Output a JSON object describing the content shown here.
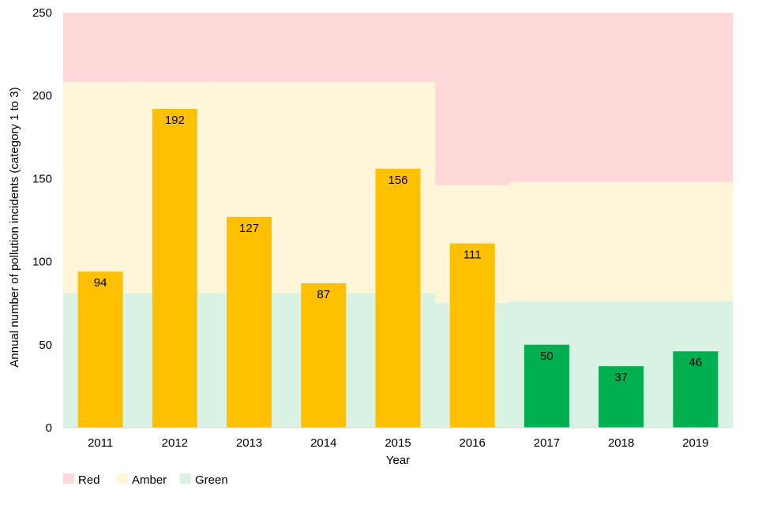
{
  "chart_data": {
    "type": "bar",
    "categories": [
      "2011",
      "2012",
      "2013",
      "2014",
      "2015",
      "2016",
      "2017",
      "2018",
      "2019"
    ],
    "values": [
      94,
      192,
      127,
      87,
      156,
      111,
      50,
      37,
      46
    ],
    "bar_colors": [
      "#FFC000",
      "#FFC000",
      "#FFC000",
      "#FFC000",
      "#FFC000",
      "#FFC000",
      "#00B050",
      "#00B050",
      "#00B050"
    ],
    "xlabel": "Year",
    "ylabel": "Annual number of pollution incidents (category 1 to 3)",
    "ylim": [
      0,
      250
    ],
    "yticks": [
      0,
      50,
      100,
      150,
      200,
      250
    ],
    "grid": false,
    "threshold_bands": {
      "amber_upper": [
        208,
        208,
        208,
        208,
        208,
        146,
        148,
        148,
        148
      ],
      "green_upper": [
        81,
        81,
        81,
        81,
        81,
        75,
        76,
        76,
        76
      ]
    },
    "band_colors": {
      "red": "#FFD9D9",
      "amber": "#FFF5D9",
      "green": "#D9F2E4"
    },
    "legend": {
      "position": "bottom-left",
      "items": [
        {
          "label": "Red",
          "color": "#FFD9D9"
        },
        {
          "label": "Amber",
          "color": "#FFF5D9"
        },
        {
          "label": "Green",
          "color": "#D9F2E4"
        }
      ]
    }
  }
}
